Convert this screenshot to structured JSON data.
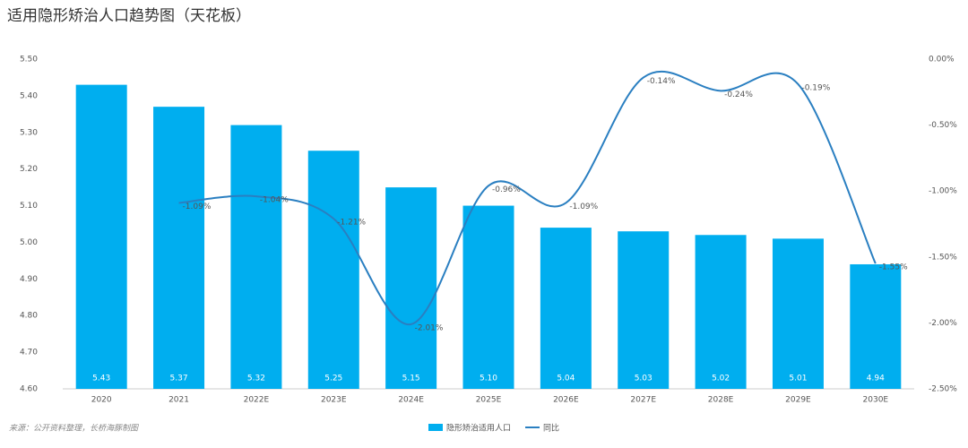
{
  "chart_data": {
    "type": "bar-line",
    "title": "适用隐形矫治人口趋势图（天花板）",
    "source": "来源：公开资料整理，长桥海豚制图",
    "categories": [
      "2020",
      "2021",
      "2022E",
      "2023E",
      "2024E",
      "2025E",
      "2026E",
      "2027E",
      "2028E",
      "2029E",
      "2030E"
    ],
    "series": [
      {
        "name": "隐形矫治适用人口",
        "type": "bar",
        "color": "#00aeef",
        "values": [
          5.43,
          5.37,
          5.32,
          5.25,
          5.15,
          5.1,
          5.04,
          5.03,
          5.02,
          5.01,
          4.94
        ],
        "value_labels": [
          "5.43",
          "5.37",
          "5.32",
          "5.25",
          "5.15",
          "5.10",
          "5.04",
          "5.03",
          "5.02",
          "5.01",
          "4.94"
        ]
      },
      {
        "name": "同比",
        "type": "line",
        "axis": "y2",
        "color": "#2a7fc1",
        "values": [
          null,
          -1.09,
          -1.04,
          -1.21,
          -2.01,
          -0.96,
          -1.09,
          -0.14,
          -0.24,
          -0.19,
          -1.55
        ],
        "value_labels": [
          null,
          "-1.09%",
          "-1.04%",
          "-1.21%",
          "-2.01%",
          "-0.96%",
          "-1.09%",
          "-0.14%",
          "-0.24%",
          "-0.19%",
          "-1.55%"
        ]
      }
    ],
    "ylim": [
      4.6,
      5.5
    ],
    "yticks": [
      {
        "value": 4.6,
        "label": "4.60"
      },
      {
        "value": 4.7,
        "label": "4.70"
      },
      {
        "value": 4.8,
        "label": "4.80"
      },
      {
        "value": 4.9,
        "label": "4.90"
      },
      {
        "value": 5.0,
        "label": "5.00"
      },
      {
        "value": 5.1,
        "label": "5.10"
      },
      {
        "value": 5.2,
        "label": "5.20"
      },
      {
        "value": 5.3,
        "label": "5.30"
      },
      {
        "value": 5.4,
        "label": "5.40"
      },
      {
        "value": 5.5,
        "label": "5.50"
      }
    ],
    "y2lim": [
      -2.5,
      0
    ],
    "y2ticks": [
      {
        "value": -2.5,
        "label": "-2.50%"
      },
      {
        "value": -2.0,
        "label": "-2.00%"
      },
      {
        "value": -1.5,
        "label": "-1.50%"
      },
      {
        "value": -1.0,
        "label": "-1.00%"
      },
      {
        "value": -0.5,
        "label": "-0.50%"
      },
      {
        "value": 0,
        "label": "0.00%"
      }
    ],
    "grid": false
  }
}
